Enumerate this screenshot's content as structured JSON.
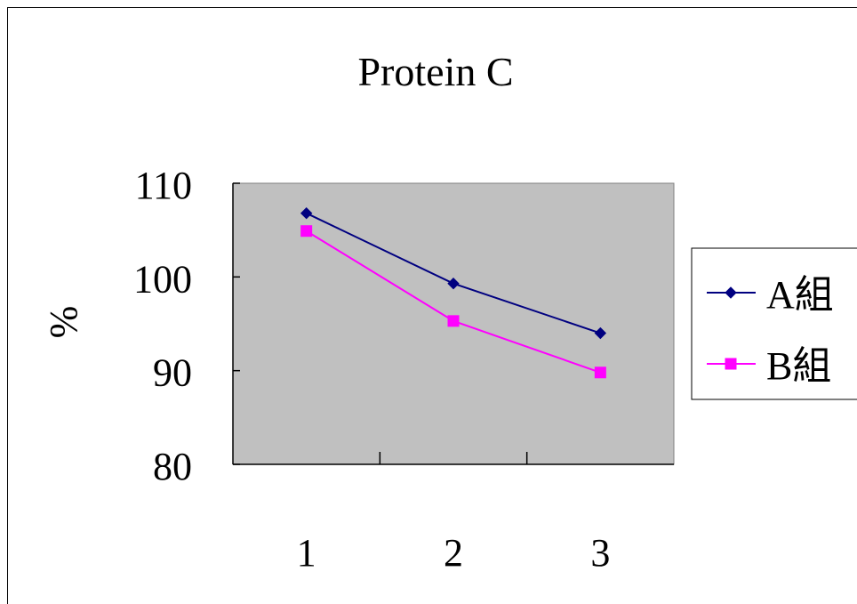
{
  "chart_data": {
    "type": "line",
    "title": "Protein C",
    "xlabel": "",
    "ylabel": "%",
    "categories": [
      "1",
      "2",
      "3"
    ],
    "ylim": [
      80,
      110
    ],
    "yticks": [
      "80",
      "90",
      "100",
      "110"
    ],
    "grid": false,
    "legend_position": "right",
    "plot_background": "#c0c0c0",
    "series": [
      {
        "name": "A組",
        "values": [
          106.8,
          99.3,
          94.0
        ],
        "color": "#000080",
        "marker": "diamond"
      },
      {
        "name": "B組",
        "values": [
          104.9,
          95.3,
          89.8
        ],
        "color": "#ff00ff",
        "marker": "square"
      }
    ]
  }
}
